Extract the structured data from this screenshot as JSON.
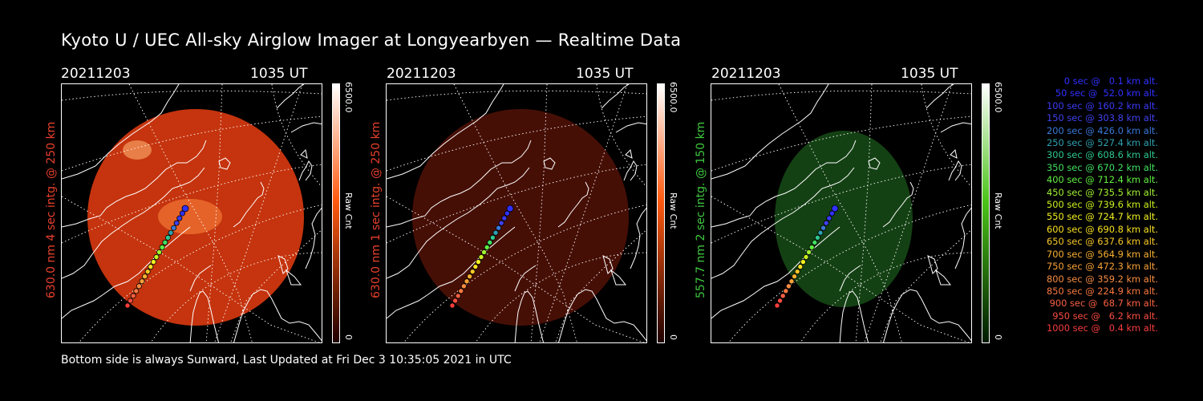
{
  "title": "Kyoto U / UEC All-sky Airglow Imager at Longyearbyen — Realtime Data",
  "footer": "Bottom side is always Sunward, Last Updated at Fri Dec  3 10:35:05 2021 in UTC",
  "panels": [
    {
      "date": "20211203",
      "time": "1035 UT",
      "side_label": "630.0 nm 4 sec intg. @ 250 km",
      "label_color": "#e8402c",
      "cbar_max": "6500.0",
      "cbar_unit": "Raw Cnt",
      "cbar_min": "0",
      "cbar_top": "#ffffff",
      "cbar_mid": "#ff5a10",
      "cbar_bottom": "#200000",
      "image_color": "#d6380f",
      "image_opacity": 0.92
    },
    {
      "date": "20211203",
      "time": "1035 UT",
      "side_label": "630.0 nm 1 sec intg. @ 250 km",
      "label_color": "#e8402c",
      "cbar_max": "6500.0",
      "cbar_unit": "Raw Cnt",
      "cbar_min": "0",
      "cbar_top": "#ffffff",
      "cbar_mid": "#ff5a10",
      "cbar_bottom": "#200000",
      "image_color": "#4a1006",
      "image_opacity": 0.95
    },
    {
      "date": "20211203",
      "time": "1035 UT",
      "side_label": "557.7 nm 2 sec intg. @ 150 km",
      "label_color": "#3ec83e",
      "cbar_max": "6500.0",
      "cbar_unit": "Raw Cnt",
      "cbar_min": "0",
      "cbar_top": "#ffffff",
      "cbar_mid": "#4cc41a",
      "cbar_bottom": "#001a00",
      "image_color": "#154515",
      "image_opacity": 0.95
    }
  ],
  "legend": [
    {
      "text": "0 sec @   0.1 km alt.",
      "color": "#3030ff"
    },
    {
      "text": "50 sec @  52.0 km alt.",
      "color": "#3030ff"
    },
    {
      "text": "100 sec @ 160.2 km alt.",
      "color": "#3a3af5"
    },
    {
      "text": "150 sec @ 303.8 km alt.",
      "color": "#4040f0"
    },
    {
      "text": "200 sec @ 426.0 km alt.",
      "color": "#3a78d8"
    },
    {
      "text": "250 sec @ 527.4 km alt.",
      "color": "#2ea0b0"
    },
    {
      "text": "300 sec @ 608.6 km alt.",
      "color": "#2ec890"
    },
    {
      "text": "350 sec @ 670.2 km alt.",
      "color": "#40e060"
    },
    {
      "text": "400 sec @ 712.4 km alt.",
      "color": "#60f040"
    },
    {
      "text": "450 sec @ 735.5 km alt.",
      "color": "#a0f030"
    },
    {
      "text": "500 sec @ 739.6 km alt.",
      "color": "#c8f020"
    },
    {
      "text": "550 sec @ 724.7 km alt.",
      "color": "#f0f020"
    },
    {
      "text": "600 sec @ 690.8 km alt.",
      "color": "#f8e020"
    },
    {
      "text": "650 sec @ 637.6 km alt.",
      "color": "#f8c828"
    },
    {
      "text": "700 sec @ 564.9 km alt.",
      "color": "#f8b030"
    },
    {
      "text": "750 sec @ 472.3 km alt.",
      "color": "#f8a038"
    },
    {
      "text": "800 sec @ 359.2 km alt.",
      "color": "#f88c40"
    },
    {
      "text": "850 sec @ 224.9 km alt.",
      "color": "#f87840"
    },
    {
      "text": "900 sec @  68.7 km alt.",
      "color": "#f86040"
    },
    {
      "text": "950 sec @   6.2 km alt.",
      "color": "#f84c40"
    },
    {
      "text": "1000 sec @   0.4 km alt.",
      "color": "#f83c3c"
    }
  ]
}
